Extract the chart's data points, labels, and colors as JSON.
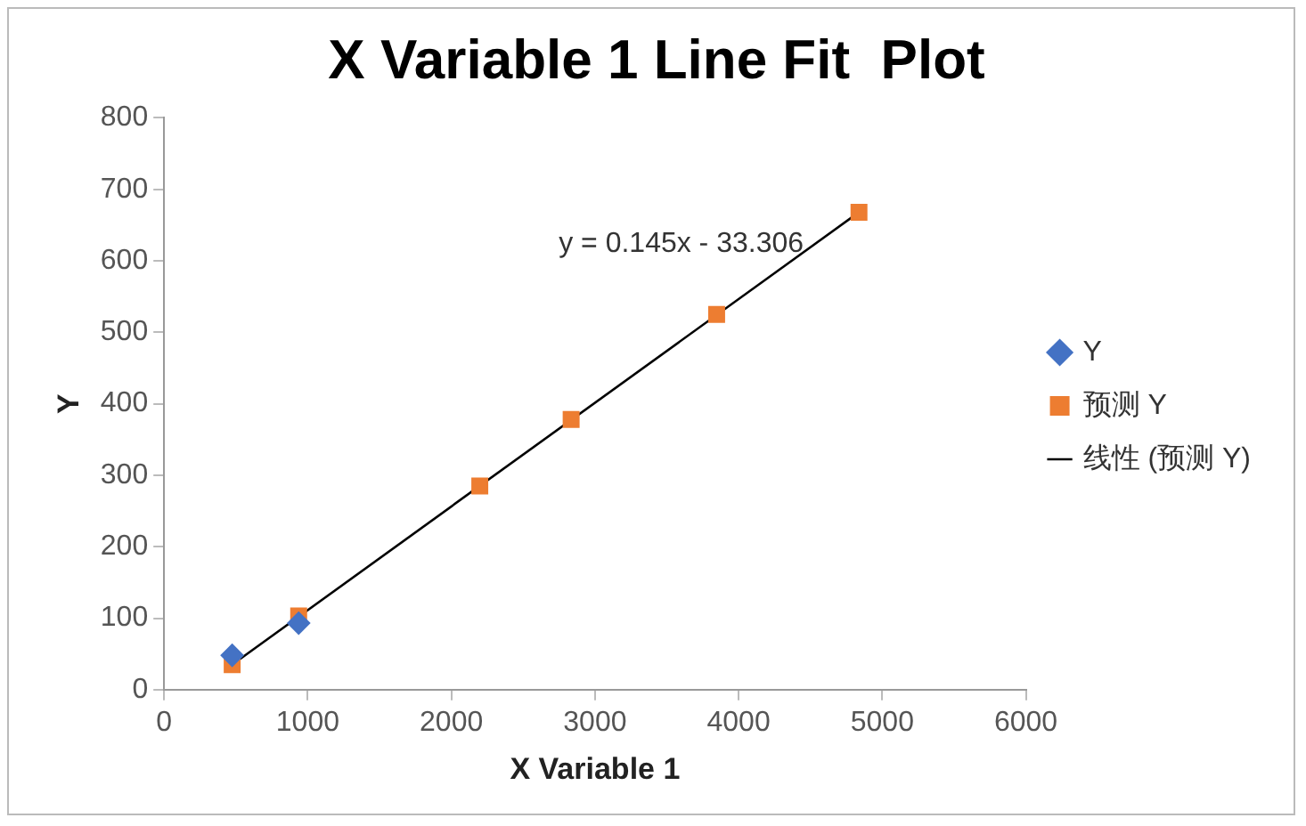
{
  "chart_data": {
    "type": "scatter",
    "title": "X Variable 1 Line Fit  Plot",
    "xlabel": "X Variable 1",
    "ylabel": "Y",
    "x": [
      474,
      937,
      2198,
      2834,
      3847,
      4838
    ],
    "series": [
      {
        "name": "Y",
        "color": "#4472c4",
        "marker": "diamond",
        "values": [
          48,
          93,
          null,
          null,
          null,
          null
        ]
      },
      {
        "name": "预测 Y",
        "color": "#ed7d31",
        "marker": "square",
        "values": [
          35,
          103,
          285,
          378,
          525,
          668
        ]
      },
      {
        "name": "线性 (预测 Y)",
        "type": "line",
        "color": "#000000",
        "marker": "none",
        "line_style": "solid",
        "x": [
          474,
          4838
        ],
        "values": [
          35,
          668
        ]
      }
    ],
    "annotations": [
      "y = 0.145x - 33.306"
    ],
    "xlim": [
      0,
      6000
    ],
    "xticks": [
      0,
      1000,
      2000,
      3000,
      4000,
      5000,
      6000
    ],
    "ylim": [
      0,
      800
    ],
    "yticks": [
      0,
      100,
      200,
      300,
      400,
      500,
      600,
      700,
      800
    ],
    "grid": false,
    "legend": "right"
  }
}
